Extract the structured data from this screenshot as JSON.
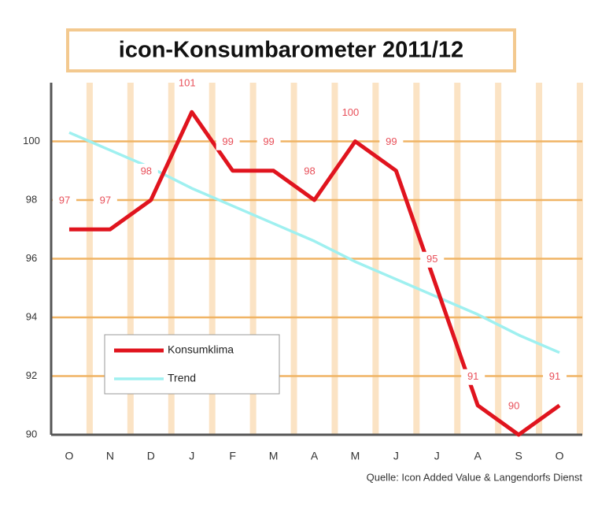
{
  "chart_data": {
    "type": "line",
    "title": "icon-Konsumbarometer 2011/12",
    "categories": [
      "O",
      "N",
      "D",
      "J",
      "F",
      "M",
      "A",
      "M",
      "J",
      "J",
      "A",
      "S",
      "O"
    ],
    "series": [
      {
        "name": "Konsumklima",
        "color": "#e0141e",
        "values": [
          97,
          97,
          98,
          101,
          99,
          99,
          98,
          100,
          99,
          95,
          91,
          90,
          91
        ],
        "data_labels": true
      },
      {
        "name": "Trend",
        "color": "#9ff0f0",
        "values": [
          100.3,
          99.7,
          99.1,
          98.4,
          97.8,
          97.2,
          96.6,
          95.9,
          95.3,
          94.7,
          94.1,
          93.4,
          92.8
        ],
        "data_labels": false
      }
    ],
    "ylim": [
      90,
      102
    ],
    "yticks": [
      90,
      92,
      94,
      96,
      98,
      100
    ],
    "grid": true,
    "legend": "lower left",
    "source": "Quelle: Icon Added Value & Langendorfs Dienst"
  }
}
